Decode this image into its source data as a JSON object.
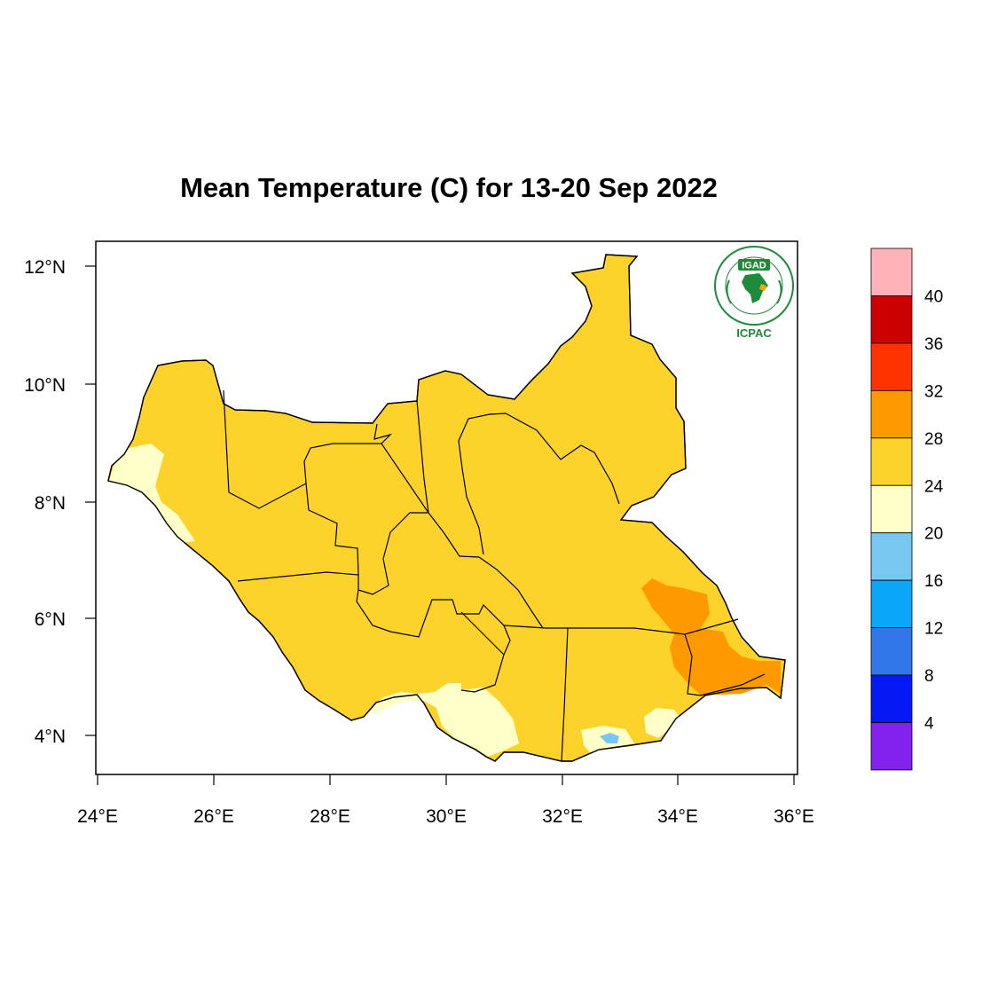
{
  "title": "Mean Temperature (C) for 13-20 Sep 2022",
  "axes": {
    "lat_ticks": [
      "12°N",
      "10°N",
      "8°N",
      "6°N",
      "4°N"
    ],
    "lon_ticks": [
      "24°E",
      "26°E",
      "28°E",
      "30°E",
      "32°E",
      "34°E",
      "36°E"
    ]
  },
  "colorbar": {
    "unit": "°C",
    "labels": [
      "40",
      "36",
      "32",
      "28",
      "24",
      "20",
      "16",
      "12",
      "8",
      "4"
    ],
    "colors": [
      "#ffb3b8",
      "#cc0000",
      "#ff3300",
      "#ff9900",
      "#fdd32b",
      "#ffffc8",
      "#78c7f2",
      "#0aa6f7",
      "#3277ea",
      "#0519f5",
      "#8122ee"
    ]
  },
  "map_colors": {
    "background": "#ffffff",
    "warm": "#fdd32b",
    "hot": "#ff9900",
    "mild": "#ffffc8",
    "cool": "#78c7f2",
    "border": "#000000"
  },
  "logo": {
    "name": "IGAD",
    "subtext": "ICPAC",
    "brand_color": "#1f8a3a"
  }
}
